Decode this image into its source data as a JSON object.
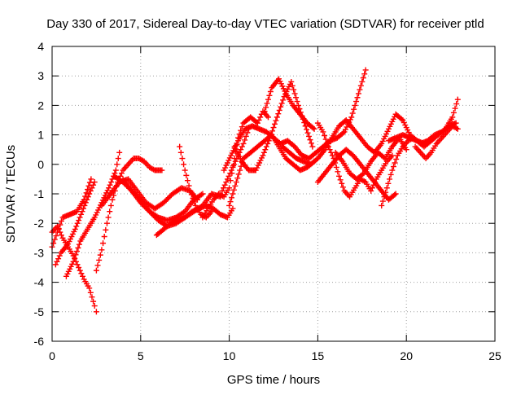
{
  "chart_data": {
    "type": "scatter",
    "title": "Day 330 of 2017, Sidereal Day-to-day VTEC variation (SDTVAR) for receiver ptld",
    "xlabel": "GPS time / hours",
    "ylabel": "SDTVAR / TECUs",
    "xlim": [
      0,
      25
    ],
    "ylim": [
      -6,
      4
    ],
    "xticks": [
      "0",
      "5",
      "10",
      "15",
      "20",
      "25"
    ],
    "yticks": [
      "-6",
      "-5",
      "-4",
      "-3",
      "-2",
      "-1",
      "0",
      "1",
      "2",
      "3",
      "4"
    ],
    "grid": true,
    "marker": "plus",
    "color": "#ff0000",
    "series": [
      {
        "x": [
          0.0,
          0.3,
          0.6,
          0.9,
          1.2,
          1.5,
          1.8,
          2.1,
          2.4,
          2.5
        ],
        "y": [
          -2.3,
          -2.1,
          -2.5,
          -2.8,
          -3.1,
          -3.5,
          -3.9,
          -4.2,
          -4.8,
          -5.0
        ]
      },
      {
        "x": [
          0.0,
          0.3,
          0.6,
          1.0,
          1.4,
          1.8,
          2.2
        ],
        "y": [
          -2.8,
          -2.3,
          -1.8,
          -1.7,
          -1.6,
          -1.2,
          -0.5
        ]
      },
      {
        "x": [
          0.2,
          0.5,
          0.9,
          1.3,
          1.7,
          2.1,
          2.4
        ],
        "y": [
          -3.4,
          -3.0,
          -2.7,
          -2.2,
          -1.6,
          -1.0,
          -0.6
        ]
      },
      {
        "x": [
          0.8,
          1.2,
          1.6,
          2.0,
          2.4,
          2.8,
          3.2,
          3.6,
          3.8
        ],
        "y": [
          -3.8,
          -3.3,
          -2.6,
          -2.2,
          -1.8,
          -1.3,
          -0.8,
          -0.2,
          0.4
        ]
      },
      {
        "x": [
          2.5,
          2.8,
          3.1,
          3.4,
          3.7,
          4.0,
          4.3,
          4.6,
          4.9,
          5.2,
          5.5,
          5.8,
          6.0,
          6.2
        ],
        "y": [
          -3.6,
          -2.9,
          -2.0,
          -1.2,
          -0.6,
          -0.2,
          0.0,
          0.2,
          0.2,
          0.1,
          -0.1,
          -0.2,
          -0.2,
          -0.2
        ]
      },
      {
        "x": [
          2.8,
          3.3,
          3.8,
          4.3,
          4.8,
          5.3,
          5.8,
          6.3,
          6.8,
          7.3,
          7.8,
          8.2
        ],
        "y": [
          -1.4,
          -1.0,
          -0.6,
          -0.5,
          -0.9,
          -1.3,
          -1.5,
          -1.3,
          -1.0,
          -0.8,
          -0.9,
          -1.2
        ]
      },
      {
        "x": [
          3.5,
          4.0,
          4.5,
          5.0,
          5.5,
          6.0,
          6.5,
          7.0,
          7.5,
          8.0,
          8.5
        ],
        "y": [
          -0.4,
          -0.6,
          -0.9,
          -1.3,
          -1.6,
          -1.8,
          -1.9,
          -1.8,
          -1.6,
          -1.2,
          -1.0
        ]
      },
      {
        "x": [
          4.0,
          4.5,
          5.0,
          5.5,
          6.0,
          6.5,
          7.0,
          7.5,
          8.0,
          8.5,
          9.0,
          9.5
        ],
        "y": [
          -0.5,
          -0.9,
          -1.2,
          -1.6,
          -1.9,
          -2.1,
          -2.0,
          -1.8,
          -1.6,
          -1.4,
          -1.0,
          -1.1
        ]
      },
      {
        "x": [
          5.9,
          6.3,
          6.7,
          7.1,
          7.5,
          7.9,
          8.3,
          8.7,
          9.1,
          9.5,
          9.9,
          10.2
        ],
        "y": [
          -2.4,
          -2.2,
          -2.0,
          -1.9,
          -1.8,
          -1.6,
          -1.5,
          -1.4,
          -1.5,
          -1.7,
          -1.8,
          -1.5
        ]
      },
      {
        "x": [
          7.2,
          7.5,
          7.8,
          8.1,
          8.4,
          8.7,
          9.0
        ],
        "y": [
          0.6,
          -0.2,
          -0.9,
          -1.4,
          -1.7,
          -1.8,
          -1.6
        ]
      },
      {
        "x": [
          8.5,
          8.8,
          9.1,
          9.4,
          9.7,
          10.0,
          10.3,
          10.5,
          10.8,
          11.2,
          11.6,
          11.9,
          12.2
        ],
        "y": [
          -1.8,
          -1.5,
          -1.2,
          -1.0,
          -1.1,
          -0.8,
          0.2,
          0.9,
          1.4,
          1.6,
          1.4,
          1.8,
          1.6
        ]
      },
      {
        "x": [
          9.6,
          9.9,
          10.2,
          10.5,
          10.8,
          11.1
        ],
        "y": [
          -0.9,
          -0.5,
          -0.1,
          0.3,
          0.7,
          1.2
        ]
      },
      {
        "x": [
          9.7,
          10.1,
          10.5,
          10.9,
          11.3,
          11.7,
          12.1,
          12.5,
          12.9,
          13.3,
          13.7,
          14.1,
          14.5,
          14.9,
          15.3,
          15.7,
          16.1,
          16.5,
          16.9,
          17.3,
          17.7
        ],
        "y": [
          -0.2,
          0.3,
          0.8,
          1.2,
          1.3,
          1.2,
          1.1,
          0.9,
          0.7,
          0.8,
          0.6,
          0.3,
          0.2,
          0.4,
          0.6,
          0.8,
          0.9,
          1.1,
          1.6,
          2.4,
          3.2
        ]
      },
      {
        "x": [
          10.0,
          10.4,
          10.8,
          11.2,
          11.6,
          12.0,
          12.4,
          12.8,
          13.2,
          13.6,
          14.0,
          14.4,
          14.8
        ],
        "y": [
          -1.4,
          -0.6,
          0.2,
          0.4,
          0.6,
          0.8,
          1.0,
          0.6,
          0.2,
          0.0,
          -0.2,
          -0.1,
          0.1
        ]
      },
      {
        "x": [
          10.3,
          10.7,
          11.1,
          11.5,
          11.9,
          12.3,
          12.7,
          13.1,
          13.5,
          13.9,
          14.3,
          14.7
        ],
        "y": [
          0.6,
          0.1,
          -0.2,
          -0.2,
          0.3,
          0.9,
          1.6,
          2.3,
          2.8,
          2.0,
          1.3,
          0.6
        ]
      },
      {
        "x": [
          12.0,
          12.4,
          12.8,
          13.2,
          13.6,
          14.0,
          14.4,
          14.8
        ],
        "y": [
          1.8,
          2.6,
          2.9,
          2.4,
          2.0,
          1.7,
          1.4,
          1.2
        ]
      },
      {
        "x": [
          13.0,
          13.4,
          13.8,
          14.2,
          14.6,
          15.0,
          15.4,
          15.8,
          16.2,
          16.6,
          17.0,
          17.4,
          17.8,
          18.2,
          18.6,
          19.0,
          19.4,
          19.8,
          20.2,
          20.6,
          21.0
        ],
        "y": [
          0.6,
          0.4,
          0.2,
          0.1,
          0.0,
          0.2,
          0.5,
          0.9,
          1.3,
          1.5,
          1.2,
          0.9,
          0.6,
          0.4,
          0.7,
          1.2,
          1.7,
          1.5,
          1.0,
          0.8,
          0.7
        ]
      },
      {
        "x": [
          15.0,
          15.3,
          15.6,
          15.9,
          16.2,
          16.5,
          16.8,
          17.1,
          17.4,
          17.7,
          18.0,
          18.3,
          18.6,
          18.9,
          19.2
        ],
        "y": [
          1.4,
          1.1,
          0.6,
          0.2,
          -0.4,
          -0.9,
          -1.1,
          -0.8,
          -0.5,
          -0.6,
          -0.9,
          -0.5,
          -0.2,
          0.1,
          0.3
        ]
      },
      {
        "x": [
          15.0,
          15.4,
          15.8,
          16.2,
          16.6,
          17.0,
          17.4,
          17.8,
          18.2,
          18.6,
          19.0,
          19.4
        ],
        "y": [
          -0.6,
          -0.3,
          0.0,
          0.3,
          0.5,
          0.3,
          0.0,
          -0.3,
          -0.6,
          -0.9,
          -1.2,
          -1.0
        ]
      },
      {
        "x": [
          16.0,
          16.4,
          16.8,
          17.2,
          17.6,
          18.0,
          18.4,
          18.8,
          19.2,
          19.6,
          20.0
        ],
        "y": [
          0.4,
          0.1,
          -0.3,
          -0.5,
          -0.3,
          0.1,
          0.4,
          0.2,
          0.6,
          0.9,
          0.5
        ]
      },
      {
        "x": [
          18.6,
          18.9,
          19.2,
          19.5,
          19.8,
          20.1,
          20.4,
          20.8,
          21.2,
          21.6,
          22.0,
          22.4,
          22.8
        ],
        "y": [
          -1.4,
          -0.8,
          -0.2,
          0.3,
          0.6,
          0.8,
          0.9,
          0.7,
          0.8,
          1.0,
          1.1,
          1.3,
          1.4
        ]
      },
      {
        "x": [
          19.0,
          19.4,
          19.8,
          20.2,
          20.6,
          21.0,
          21.4,
          21.8,
          22.2,
          22.6,
          22.9
        ],
        "y": [
          0.8,
          0.9,
          1.0,
          0.9,
          0.8,
          0.6,
          0.8,
          1.0,
          1.2,
          1.6,
          2.2
        ]
      },
      {
        "x": [
          20.5,
          20.8,
          21.1,
          21.4,
          21.7,
          22.0,
          22.3,
          22.6,
          22.9
        ],
        "y": [
          0.6,
          0.4,
          0.2,
          0.4,
          0.7,
          0.9,
          1.1,
          1.3,
          1.2
        ]
      }
    ]
  }
}
